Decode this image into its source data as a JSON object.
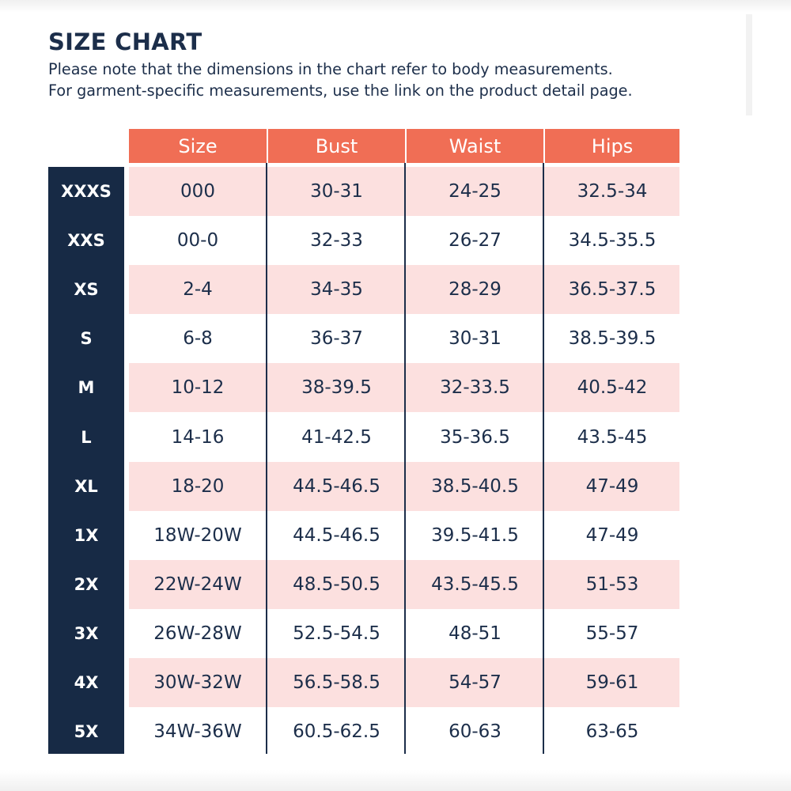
{
  "title": "SIZE CHART",
  "note_line1": "Please note that the dimensions in the chart refer to body measurements.",
  "note_line2": "For garment-specific measurements, use the link on the product detail page.",
  "colors": {
    "header_bg": "#f06e55",
    "size_column_bg": "#172a45",
    "stripe_bg": "#fce0df",
    "text": "#1c2e4a"
  },
  "columns": [
    "Size",
    "Bust",
    "Waist",
    "Hips"
  ],
  "rows": [
    {
      "label": "XXXS",
      "size": "000",
      "bust": "30-31",
      "waist": "24-25",
      "hips": "32.5-34"
    },
    {
      "label": "XXS",
      "size": "00-0",
      "bust": "32-33",
      "waist": "26-27",
      "hips": "34.5-35.5"
    },
    {
      "label": "XS",
      "size": "2-4",
      "bust": "34-35",
      "waist": "28-29",
      "hips": "36.5-37.5"
    },
    {
      "label": "S",
      "size": "6-8",
      "bust": "36-37",
      "waist": "30-31",
      "hips": "38.5-39.5"
    },
    {
      "label": "M",
      "size": "10-12",
      "bust": "38-39.5",
      "waist": "32-33.5",
      "hips": "40.5-42"
    },
    {
      "label": "L",
      "size": "14-16",
      "bust": "41-42.5",
      "waist": "35-36.5",
      "hips": "43.5-45"
    },
    {
      "label": "XL",
      "size": "18-20",
      "bust": "44.5-46.5",
      "waist": "38.5-40.5",
      "hips": "47-49"
    },
    {
      "label": "1X",
      "size": "18W-20W",
      "bust": "44.5-46.5",
      "waist": "39.5-41.5",
      "hips": "47-49"
    },
    {
      "label": "2X",
      "size": "22W-24W",
      "bust": "48.5-50.5",
      "waist": "43.5-45.5",
      "hips": "51-53"
    },
    {
      "label": "3X",
      "size": "26W-28W",
      "bust": "52.5-54.5",
      "waist": "48-51",
      "hips": "55-57"
    },
    {
      "label": "4X",
      "size": "30W-32W",
      "bust": "56.5-58.5",
      "waist": "54-57",
      "hips": "59-61"
    },
    {
      "label": "5X",
      "size": "34W-36W",
      "bust": "60.5-62.5",
      "waist": "60-63",
      "hips": "63-65"
    }
  ]
}
